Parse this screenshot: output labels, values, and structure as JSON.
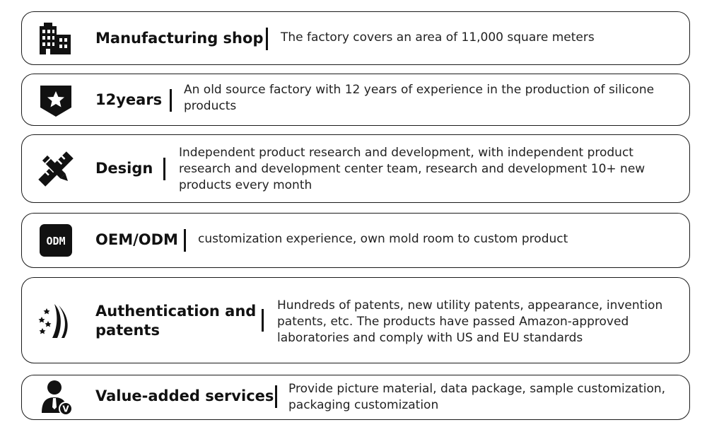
{
  "items": [
    {
      "icon": "buildings-icon",
      "title": "Manufacturing shop",
      "description": "The factory covers an area of 11,000 square meters"
    },
    {
      "icon": "star-shield-icon",
      "title": "12years",
      "description": "An old source factory with 12 years of experience in the production of silicone products"
    },
    {
      "icon": "pencil-ruler-icon",
      "title": "Design",
      "description": "Independent product research and development, with independent product research and development center team, research and development 10+ new products every month"
    },
    {
      "icon": "odm-badge-icon",
      "badge_text": "ODM",
      "title": "OEM/ODM",
      "description": "customization experience, own mold room to custom product"
    },
    {
      "icon": "patent-stars-icon",
      "title": "Authentication and patents",
      "description": "Hundreds of patents, new utility patents, appearance, invention patents, etc. The products have passed Amazon-approved laboratories and comply with US and EU standards"
    },
    {
      "icon": "service-person-icon",
      "badge_text": "V",
      "title": "Value-added services",
      "description": "Provide picture material, data package, sample customization, packaging customization"
    }
  ]
}
